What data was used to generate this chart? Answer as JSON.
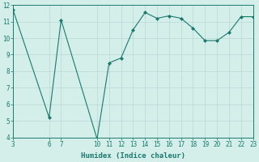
{
  "x": [
    3,
    6,
    7,
    10,
    11,
    12,
    13,
    14,
    15,
    16,
    17,
    18,
    19,
    20,
    21,
    22,
    23
  ],
  "y": [
    11.7,
    5.2,
    11.1,
    3.9,
    8.5,
    8.8,
    10.5,
    11.55,
    11.2,
    11.35,
    11.2,
    10.6,
    9.85,
    9.85,
    10.35,
    11.3,
    11.3
  ],
  "line_color": "#1a7a6e",
  "marker": "D",
  "marker_size": 2,
  "bg_color": "#d4eeea",
  "grid_color": "#b8d8d4",
  "xlabel": "Humidex (Indice chaleur)",
  "xlim": [
    3,
    23
  ],
  "ylim": [
    4,
    12
  ],
  "yticks": [
    4,
    5,
    6,
    7,
    8,
    9,
    10,
    11,
    12
  ],
  "xticks": [
    3,
    6,
    7,
    10,
    11,
    12,
    13,
    14,
    15,
    16,
    17,
    18,
    19,
    20,
    21,
    22,
    23
  ],
  "tick_color": "#1a7a6e",
  "label_fontsize": 6.5,
  "tick_fontsize": 5.5
}
